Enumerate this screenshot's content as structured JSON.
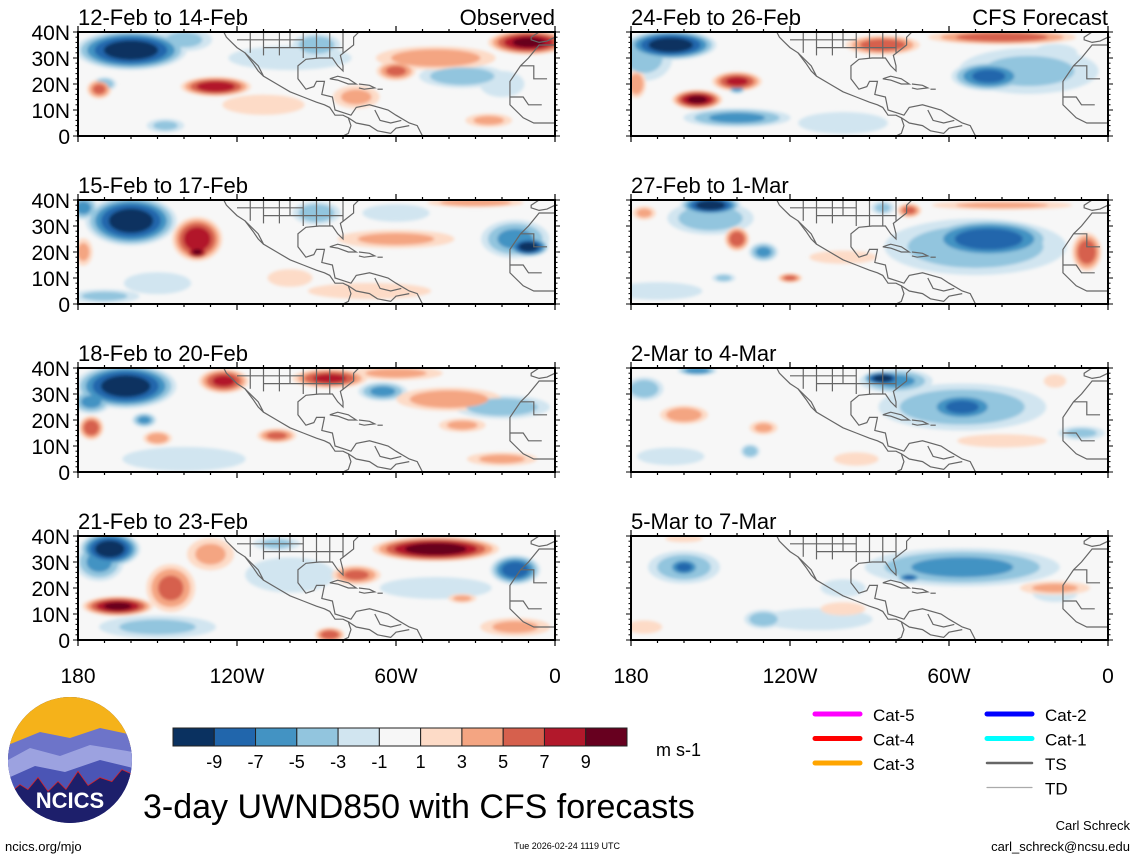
{
  "chart_data": {
    "type": "heatmap",
    "title": "3-day UWND850 with CFS forecasts",
    "variable": "850-hPa zonal wind anomaly",
    "units": "m s-1",
    "x_ticks": [
      "180",
      "120W",
      "60W",
      "0"
    ],
    "y_ticks": [
      "40N",
      "30N",
      "20N",
      "10N",
      "0"
    ],
    "xlim_lon_west": [
      180,
      0
    ],
    "ylim_lat": [
      0,
      40
    ],
    "colorbar": {
      "labels": [
        "-9",
        "-7",
        "-5",
        "-3",
        "-1",
        "1",
        "3",
        "5",
        "7",
        "9"
      ],
      "colors": [
        "#0a3160",
        "#2166ac",
        "#4393c3",
        "#92c5de",
        "#d1e5f0",
        "#f7f7f7",
        "#fddbc7",
        "#f4a582",
        "#d6604d",
        "#b2182b",
        "#67001f"
      ]
    },
    "blob_format": [
      "lon_west_deg",
      "lat_deg",
      "value_ms",
      "half_width_lon_deg",
      "half_height_lat_deg"
    ],
    "panels": [
      {
        "title": "12-Feb to 14-Feb",
        "tag": "Observed",
        "column": "left",
        "blobs": [
          [
            160,
            33,
            -11,
            22,
            8
          ],
          [
            140,
            37,
            -4,
            12,
            5
          ],
          [
            90,
            35,
            -5,
            10,
            5
          ],
          [
            100,
            30,
            -2,
            30,
            6
          ],
          [
            170,
            20,
            -5,
            5,
            3
          ],
          [
            35,
            23,
            -5,
            18,
            5
          ],
          [
            147,
            4,
            -4,
            8,
            3
          ],
          [
            20,
            20,
            -3,
            10,
            6
          ],
          [
            172,
            18,
            6,
            5,
            4
          ],
          [
            128,
            19,
            9,
            14,
            4
          ],
          [
            60,
            25,
            6,
            8,
            4
          ],
          [
            45,
            30,
            5,
            25,
            5
          ],
          [
            10,
            36,
            10,
            16,
            5
          ],
          [
            75,
            15,
            4,
            10,
            5
          ],
          [
            25,
            6,
            4,
            10,
            3
          ],
          [
            110,
            12,
            2,
            20,
            5
          ]
        ]
      },
      {
        "title": "15-Feb to 17-Feb",
        "tag": "",
        "column": "left",
        "blobs": [
          [
            160,
            32,
            -11,
            18,
            10
          ],
          [
            178,
            37,
            -6,
            6,
            5
          ],
          [
            90,
            35,
            -5,
            10,
            5
          ],
          [
            10,
            22,
            -11,
            8,
            4
          ],
          [
            15,
            25,
            -6,
            14,
            8
          ],
          [
            150,
            8,
            -3,
            15,
            5
          ],
          [
            170,
            3,
            -4,
            15,
            3
          ],
          [
            60,
            35,
            -3,
            15,
            4
          ],
          [
            135,
            25,
            9,
            10,
            9
          ],
          [
            135,
            20,
            10,
            5,
            3
          ],
          [
            178,
            20,
            4,
            4,
            6
          ],
          [
            60,
            25,
            4,
            25,
            4
          ],
          [
            30,
            39,
            5,
            20,
            2
          ],
          [
            100,
            10,
            3,
            10,
            4
          ],
          [
            70,
            5,
            2,
            30,
            4
          ]
        ]
      },
      {
        "title": "18-Feb to 20-Feb",
        "tag": "",
        "column": "left",
        "blobs": [
          [
            162,
            33,
            -11,
            20,
            9
          ],
          [
            175,
            27,
            -6,
            8,
            5
          ],
          [
            155,
            20,
            -6,
            5,
            3
          ],
          [
            140,
            5,
            -2,
            30,
            6
          ],
          [
            65,
            31,
            -6,
            10,
            4
          ],
          [
            20,
            25,
            -5,
            20,
            5
          ],
          [
            175,
            17,
            7,
            5,
            5
          ],
          [
            150,
            13,
            5,
            6,
            3
          ],
          [
            125,
            35,
            8,
            10,
            5
          ],
          [
            85,
            36,
            8,
            15,
            4
          ],
          [
            40,
            28,
            5,
            22,
            5
          ],
          [
            35,
            18,
            4,
            10,
            3
          ],
          [
            105,
            14,
            6,
            8,
            3
          ],
          [
            20,
            5,
            4,
            15,
            3
          ],
          [
            60,
            38,
            4,
            20,
            3
          ]
        ]
      },
      {
        "title": "21-Feb to 23-Feb",
        "tag": "",
        "column": "left",
        "blobs": [
          [
            168,
            35,
            -11,
            12,
            7
          ],
          [
            172,
            30,
            -6,
            10,
            8
          ],
          [
            15,
            27,
            -9,
            10,
            6
          ],
          [
            150,
            5,
            -4,
            25,
            5
          ],
          [
            100,
            25,
            -3,
            20,
            8
          ],
          [
            45,
            20,
            -3,
            25,
            5
          ],
          [
            105,
            37,
            -4,
            10,
            3
          ],
          [
            165,
            13,
            10,
            14,
            4
          ],
          [
            145,
            20,
            6,
            10,
            10
          ],
          [
            130,
            33,
            4,
            10,
            7
          ],
          [
            45,
            35,
            11,
            25,
            5
          ],
          [
            75,
            25,
            6,
            10,
            4
          ],
          [
            85,
            2,
            7,
            6,
            3
          ],
          [
            35,
            16,
            4,
            6,
            2
          ],
          [
            15,
            5,
            4,
            15,
            4
          ]
        ]
      },
      {
        "title": "24-Feb to 26-Feb",
        "tag": "CFS Forecast",
        "column": "right",
        "blobs": [
          [
            165,
            35,
            -11,
            18,
            6
          ],
          [
            175,
            30,
            -4,
            12,
            10
          ],
          [
            45,
            23,
            -8,
            15,
            6
          ],
          [
            30,
            25,
            -4,
            30,
            10
          ],
          [
            140,
            7,
            -6,
            22,
            4
          ],
          [
            140,
            19,
            -7,
            4,
            3
          ],
          [
            100,
            5,
            -3,
            20,
            5
          ],
          [
            20,
            32,
            -3,
            10,
            4
          ],
          [
            155,
            14,
            10,
            10,
            4
          ],
          [
            140,
            21,
            8,
            10,
            4
          ],
          [
            85,
            35,
            7,
            15,
            4
          ],
          [
            40,
            38,
            7,
            30,
            3
          ],
          [
            178,
            20,
            5,
            4,
            6
          ]
        ]
      },
      {
        "title": "27-Feb to 1-Mar",
        "tag": "",
        "column": "right",
        "blobs": [
          [
            150,
            38,
            -11,
            12,
            4
          ],
          [
            150,
            33,
            -5,
            18,
            7
          ],
          [
            45,
            25,
            -9,
            25,
            8
          ],
          [
            50,
            22,
            -5,
            38,
            12
          ],
          [
            130,
            20,
            -6,
            6,
            4
          ],
          [
            170,
            5,
            -3,
            20,
            4
          ],
          [
            145,
            10,
            -4,
            5,
            2
          ],
          [
            85,
            37,
            -4,
            5,
            3
          ],
          [
            140,
            25,
            7,
            5,
            5
          ],
          [
            8,
            20,
            7,
            6,
            8
          ],
          [
            120,
            10,
            6,
            5,
            2
          ],
          [
            75,
            36,
            6,
            5,
            3
          ],
          [
            40,
            38,
            4,
            30,
            2
          ],
          [
            175,
            35,
            4,
            5,
            3
          ],
          [
            100,
            18,
            3,
            15,
            3
          ]
        ]
      },
      {
        "title": "2-Mar to 4-Mar",
        "tag": "",
        "column": "right",
        "blobs": [
          [
            85,
            36,
            -11,
            8,
            3
          ],
          [
            80,
            35,
            -6,
            15,
            5
          ],
          [
            55,
            25,
            -8,
            15,
            6
          ],
          [
            55,
            25,
            -5,
            35,
            10
          ],
          [
            175,
            32,
            -5,
            8,
            5
          ],
          [
            155,
            39,
            -7,
            8,
            2
          ],
          [
            165,
            6,
            -3,
            15,
            4
          ],
          [
            135,
            8,
            -5,
            4,
            3
          ],
          [
            10,
            15,
            -4,
            10,
            3
          ],
          [
            160,
            22,
            5,
            10,
            4
          ],
          [
            130,
            17,
            4,
            6,
            3
          ],
          [
            40,
            12,
            3,
            20,
            3
          ],
          [
            20,
            35,
            3,
            5,
            3
          ],
          [
            95,
            5,
            3,
            10,
            3
          ]
        ]
      },
      {
        "title": "5-Mar to 7-Mar",
        "tag": "",
        "column": "right",
        "blobs": [
          [
            160,
            28,
            -8,
            7,
            4
          ],
          [
            160,
            28,
            -5,
            15,
            7
          ],
          [
            55,
            28,
            -6,
            40,
            8
          ],
          [
            75,
            24,
            -8,
            5,
            2
          ],
          [
            130,
            8,
            -5,
            8,
            4
          ],
          [
            110,
            8,
            -3,
            25,
            5
          ],
          [
            20,
            18,
            -3,
            10,
            4
          ],
          [
            100,
            20,
            -3,
            10,
            4
          ],
          [
            160,
            39,
            1.5,
            10,
            2
          ],
          [
            20,
            20,
            4,
            15,
            3
          ],
          [
            100,
            12,
            3,
            10,
            3
          ],
          [
            175,
            5,
            3,
            8,
            3
          ]
        ]
      }
    ]
  },
  "storm_legend": [
    {
      "label": "Cat-5",
      "color": "#ff00ff"
    },
    {
      "label": "Cat-4",
      "color": "#ff0000"
    },
    {
      "label": "Cat-3",
      "color": "#ffa500"
    },
    {
      "label": "Cat-2",
      "color": "#0000ff"
    },
    {
      "label": "Cat-1",
      "color": "#00ffff"
    },
    {
      "label": "TS",
      "color": "#666666"
    },
    {
      "label": "TD",
      "color": "#aaaaaa"
    }
  ],
  "logo": {
    "text": "NCICS"
  },
  "footer": {
    "url": "ncics.org/mjo",
    "timestamp": "Tue 2026-02-24 1119 UTC",
    "author": "Carl Schreck",
    "email": "carl_schreck@ncsu.edu"
  }
}
